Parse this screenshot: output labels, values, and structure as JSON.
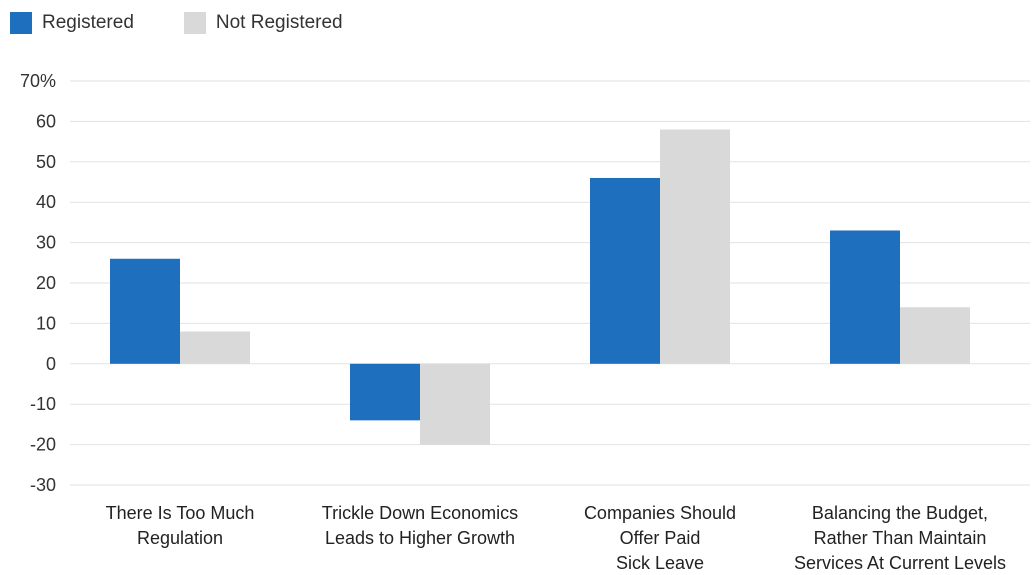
{
  "chart_data": {
    "type": "bar",
    "categories": [
      [
        "There Is Too Much",
        "Regulation"
      ],
      [
        "Trickle Down Economics",
        "Leads to Higher Growth"
      ],
      [
        "Companies Should",
        "Offer Paid",
        "Sick Leave"
      ],
      [
        "Balancing the Budget,",
        "Rather Than Maintain",
        "Services At Current Levels"
      ]
    ],
    "series": [
      {
        "name": "Registered",
        "color": "#1f6fbf",
        "values": [
          26,
          -14,
          46,
          33
        ]
      },
      {
        "name": "Not Registered",
        "color": "#d9d9d9",
        "values": [
          8,
          -20,
          58,
          14
        ]
      }
    ],
    "yticks": [
      "70%",
      "60",
      "50",
      "40",
      "30",
      "20",
      "10",
      "0",
      "-10",
      "-20",
      "-30"
    ],
    "ylim": [
      -30,
      70
    ],
    "grid": true,
    "legend_position": "top-left"
  }
}
